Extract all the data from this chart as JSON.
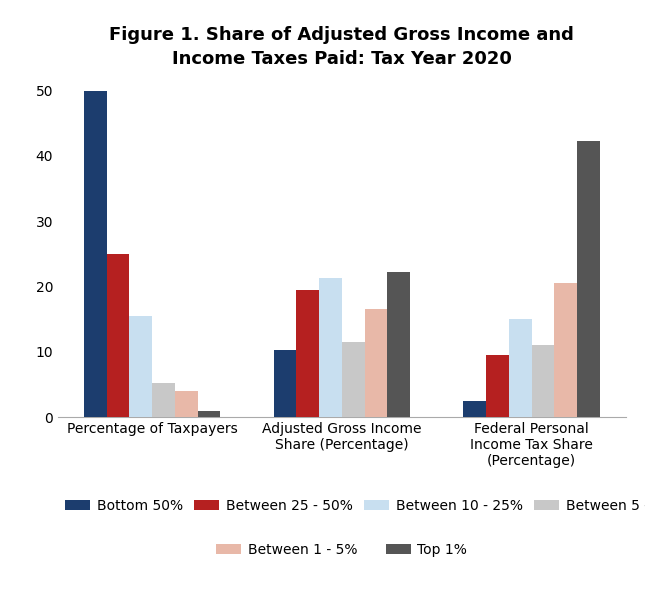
{
  "title": "Figure 1. Share of Adjusted Gross Income and\nIncome Taxes Paid: Tax Year 2020",
  "categories": [
    "Percentage of Taxpayers",
    "Adjusted Gross Income\nShare (Percentage)",
    "Federal Personal\nIncome Tax Share\n(Percentage)"
  ],
  "series": {
    "Bottom 50%": [
      50.0,
      10.3,
      2.5
    ],
    "Between 25 - 50%": [
      25.0,
      19.5,
      9.5
    ],
    "Between 10 - 25%": [
      15.5,
      21.3,
      15.0
    ],
    "Between 5 - 10%": [
      5.3,
      11.5,
      11.0
    ],
    "Between 1 - 5%": [
      4.0,
      16.5,
      20.5
    ],
    "Top 1%": [
      1.0,
      22.2,
      42.3
    ]
  },
  "colors": {
    "Bottom 50%": "#1c3d6e",
    "Between 25 - 50%": "#b52020",
    "Between 10 - 25%": "#c8dff0",
    "Between 5 - 10%": "#c8c8c8",
    "Between 1 - 5%": "#e8b8a8",
    "Top 1%": "#555555"
  },
  "ylim": [
    0,
    52
  ],
  "yticks": [
    0,
    10,
    20,
    30,
    40,
    50
  ],
  "background_color": "#ffffff",
  "title_fontsize": 13,
  "legend_fontsize": 10,
  "tick_fontsize": 10,
  "bar_width": 0.12
}
